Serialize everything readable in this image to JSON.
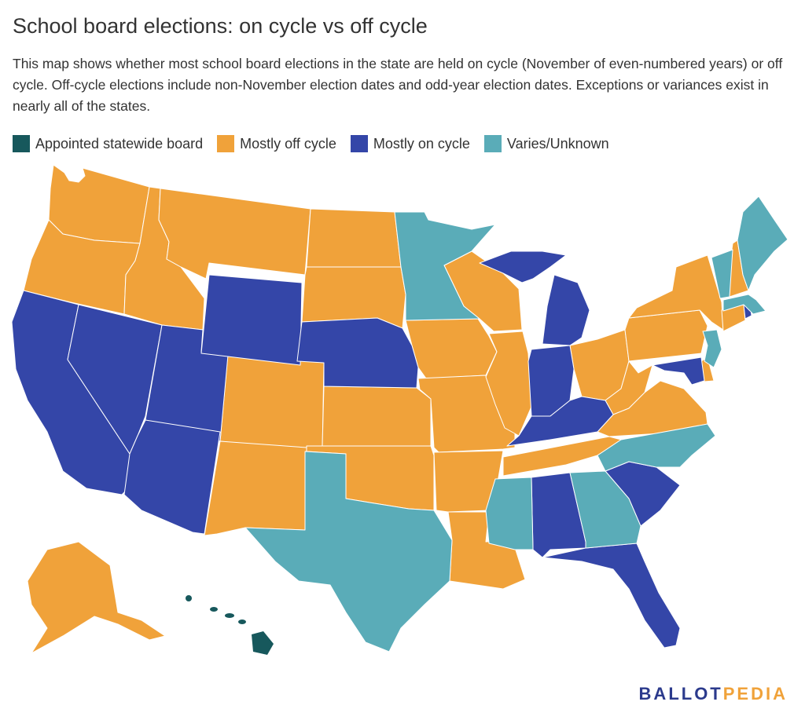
{
  "title": "School board elections: on cycle vs off cycle",
  "subtitle": "This map shows whether most school board elections in the state are held on cycle (November of even-numbered years) or off cycle. Off-cycle elections include non-November election dates and odd-year election dates. Exceptions or variances exist in nearly all of the states.",
  "legend": [
    {
      "label": "Appointed statewide board",
      "color": "#17585c"
    },
    {
      "label": "Mostly off cycle",
      "color": "#f0a23a"
    },
    {
      "label": "Mostly on cycle",
      "color": "#3446a8"
    },
    {
      "label": "Varies/Unknown",
      "color": "#5aacb8"
    }
  ],
  "categories": {
    "appointed": "#17585c",
    "off": "#f0a23a",
    "on": "#3446a8",
    "varies": "#5aacb8"
  },
  "logo": {
    "part1": "BALLOT",
    "part2": "PEDIA"
  }
}
